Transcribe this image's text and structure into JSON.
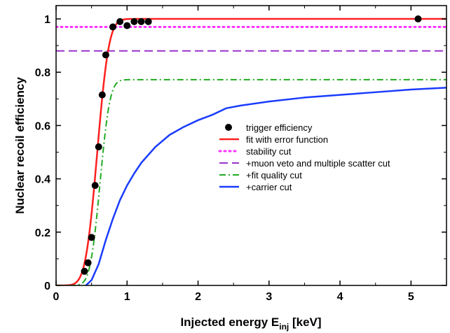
{
  "chart_data": {
    "type": "line",
    "xlabel": "Injected energy E",
    "xlabel_sub": "inj",
    "xlabel_unit": " [keV]",
    "ylabel": "Nuclear recoil efficiency",
    "xlim": [
      0,
      5.5
    ],
    "ylim": [
      0,
      1.05
    ],
    "x_ticks": [
      0,
      1,
      2,
      3,
      4,
      5
    ],
    "y_ticks": [
      0,
      0.2,
      0.4,
      0.6,
      0.8,
      1
    ],
    "y_tick_labels": [
      "0",
      "0.2",
      "0.4",
      "0.6",
      "0.8",
      "1"
    ],
    "grid": false,
    "legend_position": "center-right",
    "series": [
      {
        "name": "trigger efficiency",
        "kind": "scatter",
        "color": "#000000",
        "x": [
          0.4,
          0.45,
          0.5,
          0.55,
          0.6,
          0.65,
          0.7,
          0.8,
          0.9,
          1.0,
          1.1,
          1.2,
          1.3,
          5.1
        ],
        "y": [
          0.053,
          0.085,
          0.18,
          0.375,
          0.52,
          0.715,
          0.865,
          0.97,
          0.99,
          0.975,
          0.99,
          0.99,
          0.99,
          1.0
        ]
      },
      {
        "name": "fit with error function",
        "kind": "erf",
        "color": "#ff2020",
        "dash": "solid",
        "params": {
          "max": 1.0,
          "mu": 0.58,
          "sigma": 0.13
        }
      },
      {
        "name": "stability cut",
        "kind": "hline",
        "color": "#ff33ff",
        "dash": "dotted",
        "value": 0.97
      },
      {
        "name": "+muon veto and multiple scatter cut",
        "kind": "hline",
        "color": "#9933cc",
        "dash": "dashed",
        "value": 0.88
      },
      {
        "name": "+fit quality cut",
        "kind": "erf",
        "color": "#22aa22",
        "dash": "dashdot",
        "params": {
          "max": 0.772,
          "mu": 0.62,
          "sigma": 0.11
        }
      },
      {
        "name": "+carrier cut",
        "kind": "line",
        "color": "#1a3cff",
        "dash": "solid",
        "x": [
          0.42,
          0.5,
          0.6,
          0.7,
          0.8,
          0.9,
          1.0,
          1.1,
          1.2,
          1.4,
          1.6,
          1.8,
          2.0,
          2.2,
          2.4,
          2.6,
          3.0,
          3.5,
          4.0,
          4.5,
          5.0,
          5.5
        ],
        "y": [
          0.0,
          0.02,
          0.08,
          0.17,
          0.25,
          0.32,
          0.375,
          0.42,
          0.46,
          0.52,
          0.565,
          0.595,
          0.62,
          0.64,
          0.665,
          0.675,
          0.69,
          0.705,
          0.715,
          0.725,
          0.735,
          0.742
        ]
      }
    ]
  }
}
